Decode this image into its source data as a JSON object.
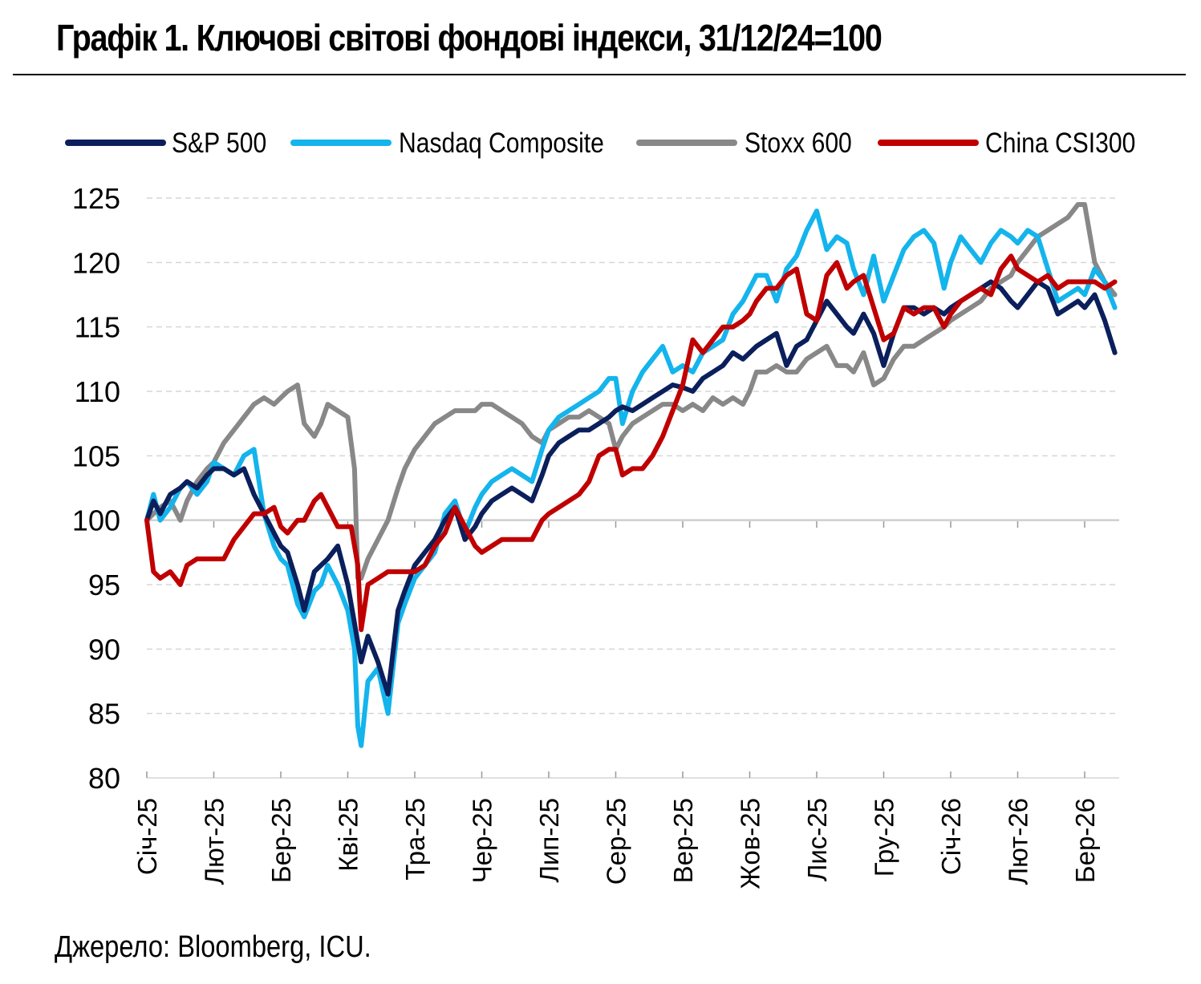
{
  "header": {
    "title": "Графік 1. Ключові світові фондові індекси, 31/12/24=100"
  },
  "footer": {
    "source": "Джерело: Bloomberg, ICU."
  },
  "chart_data": {
    "type": "line",
    "title": "Графік 1. Ключові світові фондові індекси, 31/12/24=100",
    "xlabel": "",
    "ylabel": "",
    "ylim": [
      80,
      125
    ],
    "yticks": [
      80,
      85,
      90,
      95,
      100,
      105,
      110,
      115,
      120,
      125
    ],
    "x_range": [
      0,
      14.5
    ],
    "x_ticks": [
      {
        "month": 0,
        "label": "Січ-25"
      },
      {
        "month": 1,
        "label": "Лют-25"
      },
      {
        "month": 2,
        "label": "Бер-25"
      },
      {
        "month": 3,
        "label": "Кві-25"
      },
      {
        "month": 4,
        "label": "Тра-25"
      },
      {
        "month": 5,
        "label": "Чер-25"
      },
      {
        "month": 6,
        "label": "Лип-25"
      },
      {
        "month": 7,
        "label": "Сер-25"
      },
      {
        "month": 8,
        "label": "Вер-25"
      },
      {
        "month": 9,
        "label": "Жов-25"
      },
      {
        "month": 10,
        "label": "Лис-25"
      },
      {
        "month": 11,
        "label": "Гру-25"
      },
      {
        "month": 12,
        "label": "Січ-26"
      },
      {
        "month": 13,
        "label": "Лют-26"
      },
      {
        "month": 14,
        "label": "Бер-26"
      }
    ],
    "grid": "horizontal dashed",
    "legend_position": "top",
    "x": [
      0,
      0.1,
      0.2,
      0.35,
      0.5,
      0.6,
      0.75,
      0.9,
      1,
      1.15,
      1.3,
      1.45,
      1.6,
      1.75,
      1.9,
      2,
      2.1,
      2.25,
      2.35,
      2.5,
      2.6,
      2.7,
      2.85,
      3,
      3.05,
      3.1,
      3.15,
      3.2,
      3.3,
      3.45,
      3.6,
      3.75,
      3.85,
      4,
      4.15,
      4.3,
      4.45,
      4.6,
      4.75,
      4.9,
      5,
      5.15,
      5.3,
      5.45,
      5.6,
      5.75,
      5.9,
      6,
      6.15,
      6.3,
      6.45,
      6.6,
      6.75,
      6.9,
      7,
      7.1,
      7.25,
      7.4,
      7.55,
      7.7,
      7.85,
      8,
      8.15,
      8.3,
      8.45,
      8.6,
      8.75,
      8.9,
      9,
      9.1,
      9.25,
      9.4,
      9.55,
      9.7,
      9.85,
      10,
      10.15,
      10.3,
      10.45,
      10.55,
      10.7,
      10.85,
      11,
      11.15,
      11.3,
      11.45,
      11.6,
      11.75,
      11.9,
      12,
      12.15,
      12.3,
      12.45,
      12.6,
      12.75,
      12.9,
      13,
      13.15,
      13.3,
      13.45,
      13.6,
      13.75,
      13.9,
      14,
      14.15,
      14.3,
      14.45
    ],
    "series": [
      {
        "name": "S&P 500",
        "color": "#0b1f5c",
        "values": [
          100,
          101.5,
          100.5,
          102,
          102.5,
          103,
          102.5,
          103.5,
          104,
          104,
          103.5,
          104,
          102,
          100.5,
          99,
          98,
          97.5,
          95,
          93,
          96,
          96.5,
          97,
          98,
          95,
          93.5,
          92,
          90.5,
          89,
          91,
          89,
          86.5,
          93,
          94.5,
          96.5,
          97.5,
          98.5,
          100,
          101,
          98.5,
          99.5,
          100.5,
          101.5,
          102,
          102.5,
          102,
          101.5,
          103.5,
          105,
          106,
          106.5,
          107,
          107,
          107.5,
          108,
          108.5,
          108.8,
          108.5,
          109,
          109.5,
          110,
          110.5,
          110.3,
          110,
          111,
          111.5,
          112,
          113,
          112.5,
          113,
          113.5,
          114,
          114.5,
          112,
          113.5,
          114,
          115.5,
          117,
          116,
          115,
          114.5,
          116,
          114.5,
          112,
          114.5,
          116.5,
          116.5,
          116,
          116.5,
          116,
          116.5,
          117,
          117.5,
          118,
          118.5,
          118,
          117,
          116.5,
          117.5,
          118.5,
          118,
          116,
          116.5,
          117,
          116.5,
          117.5,
          115.5,
          113
        ]
      },
      {
        "name": "Nasdaq Composite",
        "color": "#14b4ec",
        "values": [
          100,
          102,
          100,
          101,
          102.5,
          103,
          102,
          103,
          104.5,
          104,
          103.5,
          105,
          105.5,
          100.5,
          98,
          97,
          96.5,
          93.5,
          92.5,
          94.5,
          95,
          96.5,
          95,
          93,
          91.5,
          90,
          84,
          82.5,
          87.5,
          88.5,
          85,
          92,
          93.5,
          95.5,
          96.5,
          97.5,
          100.5,
          101.5,
          99,
          101,
          102,
          103,
          103.5,
          104,
          103.5,
          103,
          105.5,
          107,
          108,
          108.5,
          109,
          109.5,
          110,
          111,
          111,
          107.5,
          110,
          111.5,
          112.5,
          113.5,
          111.5,
          112,
          111.5,
          113,
          113.5,
          114,
          116,
          117,
          118,
          119,
          119,
          117,
          119.5,
          120.5,
          122.5,
          124,
          121,
          122,
          121.5,
          119.5,
          117.5,
          120.5,
          117,
          119,
          121,
          122,
          122.5,
          121.5,
          118,
          120,
          122,
          121,
          120,
          121.5,
          122.5,
          122,
          121.5,
          122.5,
          122,
          119.5,
          117,
          117.5,
          118,
          117.5,
          119.5,
          118.5,
          116.5
        ]
      },
      {
        "name": "Stoxx 600",
        "color": "#888888",
        "values": [
          100,
          100.5,
          101,
          101.5,
          100,
          101.5,
          103,
          104,
          104.5,
          106,
          107,
          108,
          109,
          109.5,
          109,
          109.5,
          110,
          110.5,
          107.5,
          106.5,
          107.5,
          109,
          108.5,
          108,
          106,
          104,
          95.5,
          95.5,
          97,
          98.5,
          100,
          102.5,
          104,
          105.5,
          106.5,
          107.5,
          108,
          108.5,
          108.5,
          108.5,
          109,
          109,
          108.5,
          108,
          107.5,
          106.5,
          106,
          107,
          107.5,
          108,
          108,
          108.5,
          108,
          107.5,
          105.5,
          106.5,
          107.5,
          108,
          108.5,
          109,
          109,
          108.5,
          109,
          108.5,
          109.5,
          109,
          109.5,
          109,
          110,
          111.5,
          111.5,
          112,
          111.5,
          111.5,
          112.5,
          113,
          113.5,
          112,
          112,
          111.5,
          113,
          110.5,
          111,
          112.5,
          113.5,
          113.5,
          114,
          114.5,
          115,
          115.5,
          116,
          116.5,
          117,
          118,
          118.5,
          119,
          120,
          121,
          122,
          122.5,
          123,
          123.5,
          124.5,
          124.5,
          120,
          118.5,
          117.5
        ]
      },
      {
        "name": "China CSI300",
        "color": "#c00000",
        "values": [
          100,
          96,
          95.5,
          96,
          95,
          96.5,
          97,
          97,
          97,
          97,
          98.5,
          99.5,
          100.5,
          100.5,
          101,
          99.5,
          99,
          100,
          100,
          101.5,
          102,
          101,
          99.5,
          99.5,
          99.5,
          98,
          96.5,
          91.5,
          95,
          95.5,
          96,
          96,
          96,
          96,
          96.5,
          98,
          99,
          101,
          99.5,
          98,
          97.5,
          98,
          98.5,
          98.5,
          98.5,
          98.5,
          100,
          100.5,
          101,
          101.5,
          102,
          103,
          105,
          105.5,
          105.5,
          103.5,
          104,
          104,
          105,
          106.5,
          108.5,
          110.5,
          114,
          113,
          114,
          115,
          115,
          115.5,
          116,
          117,
          118,
          118,
          119,
          119.5,
          116,
          115.5,
          119,
          120,
          118,
          118.5,
          119,
          116.5,
          114,
          114.5,
          116.5,
          116,
          116.5,
          116.5,
          115,
          116,
          117,
          117.5,
          118,
          117.5,
          119.5,
          120.5,
          119.5,
          119,
          118.5,
          119,
          118,
          118.5,
          118.5,
          118.5,
          118.5,
          118,
          118.5
        ]
      }
    ]
  }
}
